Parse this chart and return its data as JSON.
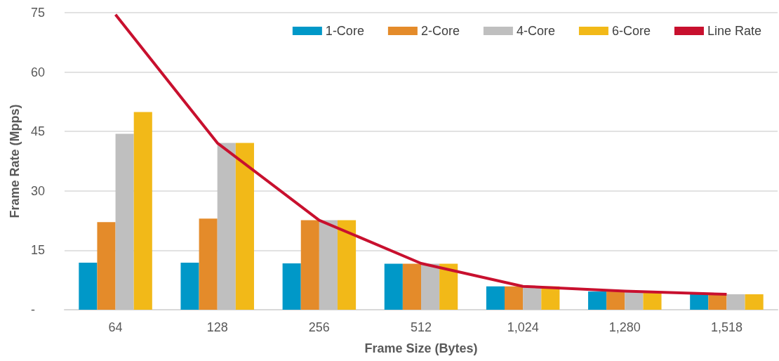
{
  "chart_data": {
    "type": "bar",
    "xlabel": "Frame Size (Bytes)",
    "ylabel": "Frame Rate (Mpps)",
    "categories": [
      "64",
      "128",
      "256",
      "512",
      "1,024",
      "1,280",
      "1,518"
    ],
    "series": [
      {
        "name": "1-Core",
        "color": "#0098c8",
        "values": [
          11.9,
          11.9,
          11.7,
          11.6,
          5.9,
          4.6,
          3.9
        ]
      },
      {
        "name": "2-Core",
        "color": "#e48b2a",
        "values": [
          22.1,
          23.0,
          22.6,
          11.6,
          5.9,
          4.6,
          3.9
        ]
      },
      {
        "name": "4-Core",
        "color": "#bfbfbf",
        "values": [
          44.4,
          42.1,
          22.6,
          11.6,
          5.9,
          4.6,
          3.9
        ]
      },
      {
        "name": "6-Core",
        "color": "#f2b918",
        "values": [
          49.9,
          42.1,
          22.6,
          11.6,
          5.9,
          4.6,
          3.9
        ]
      },
      {
        "name": "Line Rate",
        "type": "line",
        "color": "#c8102e",
        "values": [
          74.5,
          42.1,
          22.6,
          11.7,
          5.9,
          4.7,
          3.9
        ]
      }
    ],
    "ylim": [
      0,
      75
    ],
    "yticks": [
      {
        "value": 0,
        "label": "-"
      },
      15,
      30,
      45,
      60,
      75
    ],
    "grid": "y",
    "legend": "top right",
    "marker": "none"
  }
}
